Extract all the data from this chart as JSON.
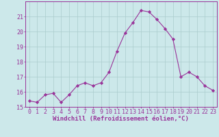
{
  "x": [
    0,
    1,
    2,
    3,
    4,
    5,
    6,
    7,
    8,
    9,
    10,
    11,
    12,
    13,
    14,
    15,
    16,
    17,
    18,
    19,
    20,
    21,
    22,
    23
  ],
  "y": [
    15.4,
    15.3,
    15.8,
    15.9,
    15.3,
    15.8,
    16.4,
    16.6,
    16.4,
    16.6,
    17.3,
    18.7,
    19.9,
    20.6,
    21.4,
    21.3,
    20.8,
    20.2,
    19.5,
    17.0,
    17.3,
    17.0,
    16.4,
    16.1
  ],
  "line_color": "#993399",
  "marker": "D",
  "marker_size": 2.2,
  "bg_color": "#cce8ea",
  "grid_color": "#aacccc",
  "xlabel": "Windchill (Refroidissement éolien,°C)",
  "xlabel_fontsize": 6.5,
  "tick_fontsize": 6.0,
  "ylim": [
    15,
    22
  ],
  "yticks": [
    15,
    16,
    17,
    18,
    19,
    20,
    21
  ],
  "xlim": [
    -0.5,
    23.5
  ]
}
